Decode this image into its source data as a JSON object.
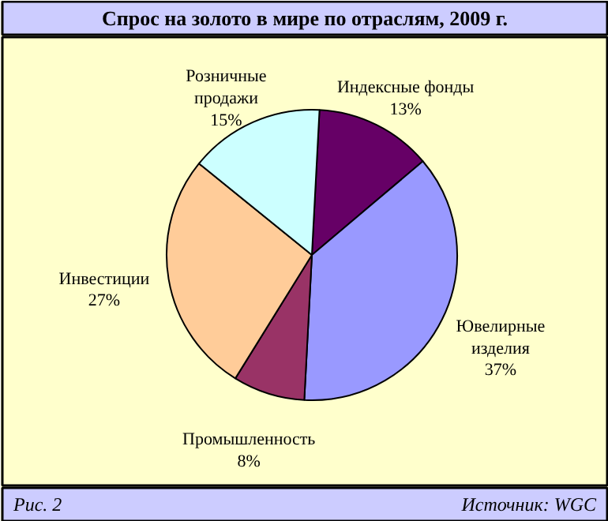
{
  "chart_data": {
    "type": "pie",
    "title": "Спрос на золото в мире по отраслям, 2009 г.",
    "categories": [
      "Индексные фонды",
      "Ювелирные изделия",
      "Промышленность",
      "Инвестиции",
      "Розничные продажи"
    ],
    "values": [
      13,
      37,
      8,
      27,
      15
    ],
    "value_labels": [
      "13%",
      "37%",
      "8%",
      "27%",
      "15%"
    ],
    "colors": [
      "#660066",
      "#9999ff",
      "#993366",
      "#ffcc99",
      "#ccffff"
    ],
    "annotations": [
      "Рис. 2",
      "Источник: WGC"
    ]
  }
}
